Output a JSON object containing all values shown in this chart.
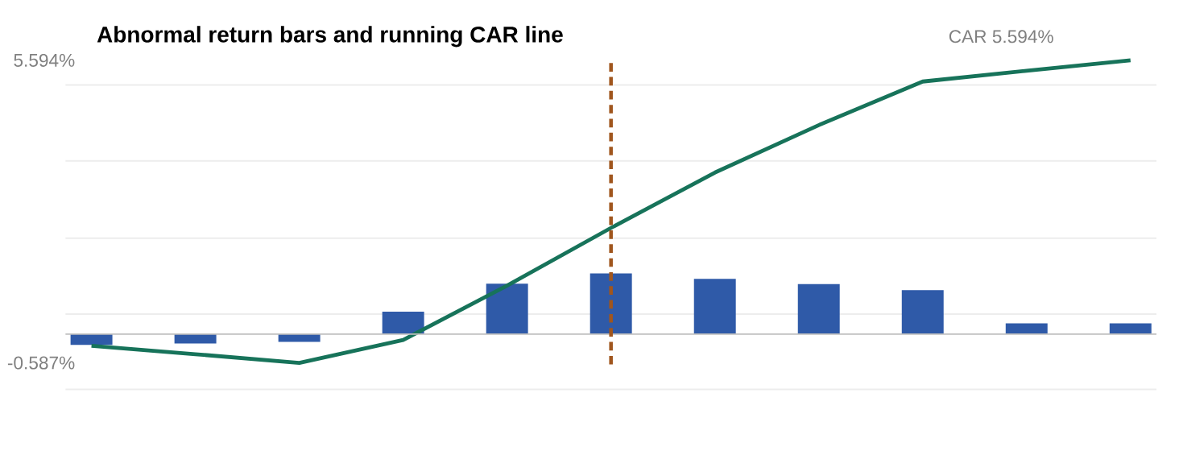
{
  "chart_data": {
    "type": "bar",
    "title": "Abnormal return bars and running CAR line",
    "categories": [
      null,
      null,
      null,
      null,
      null,
      null,
      null,
      null,
      null,
      null,
      null
    ],
    "series": [
      {
        "type": "bar",
        "color": "#2f5aa8",
        "values": [
          -0.22,
          -0.19,
          -0.16,
          0.46,
          1.03,
          1.24,
          1.13,
          1.02,
          0.9,
          0.22,
          0.22
        ]
      },
      {
        "type": "line",
        "color": "#17735a",
        "values": [
          -0.24,
          -0.41,
          -0.587,
          -0.12,
          0.99,
          2.17,
          3.3,
          4.27,
          5.16,
          5.38,
          5.594
        ]
      }
    ],
    "ylim": [
      -1.13,
      5.594
    ],
    "yticks": [
      {
        "value": 5.594,
        "label": "5.594%"
      },
      {
        "value": 5.09,
        "label": null
      },
      {
        "value": 3.54,
        "label": null
      },
      {
        "value": 1.96,
        "label": null
      },
      {
        "value": 0.41,
        "label": null
      },
      {
        "value": -0.587,
        "label": "-0.587%"
      },
      {
        "value": -1.13,
        "label": null
      }
    ],
    "grid": "y",
    "marker": "none",
    "ref_lines": [
      {
        "axis": "y",
        "value": 0,
        "color": "#bfbfbf",
        "line_style": "solid"
      }
    ],
    "annotations": [
      "CAR 5.594%"
    ]
  }
}
